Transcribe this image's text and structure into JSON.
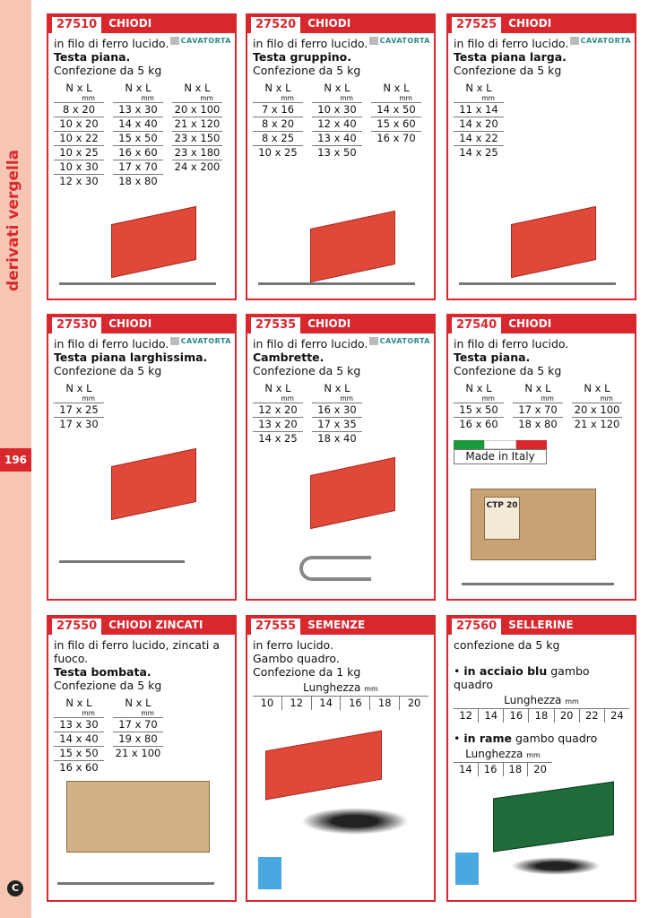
{
  "sidebar": {
    "title": "derivati vergella",
    "page": "196",
    "logo": "C"
  },
  "brand": "CAVATORTA",
  "cards": [
    {
      "code": "27510",
      "name": "CHIODI",
      "lines": [
        "in filo di ferro lucido."
      ],
      "bold": "Testa piana.",
      "pack": "Confezione da 5 kg",
      "header": "N x L",
      "unit": "mm",
      "cols": [
        [
          "8 x 20",
          "10 x 20",
          "10 x 22",
          "10 x 25",
          "10 x 30",
          "12 x 30"
        ],
        [
          "13 x 30",
          "14 x 40",
          "15 x 50",
          "16 x 60",
          "17 x 70",
          "18 x 80"
        ],
        [
          "20 x 100",
          "21 x 120",
          "23 x 150",
          "23 x 180",
          "24 x 200"
        ]
      ]
    },
    {
      "code": "27520",
      "name": "CHIODI",
      "lines": [
        "in filo di ferro lucido."
      ],
      "bold": "Testa gruppino.",
      "pack": "Confezione da 5 kg",
      "header": "N x L",
      "unit": "mm",
      "cols": [
        [
          "7 x 16",
          "8 x 20",
          "8 x 25",
          "10 x 25"
        ],
        [
          "10 x 30",
          "12 x 40",
          "13 x 40",
          "13 x 50"
        ],
        [
          "14 x 50",
          "15 x 60",
          "16 x 70"
        ]
      ]
    },
    {
      "code": "27525",
      "name": "CHIODI",
      "lines": [
        "in filo di ferro lucido."
      ],
      "bold": "Testa piana larga.",
      "pack": "Confezione da 5 kg",
      "header": "N x L",
      "unit": "mm",
      "cols": [
        [
          "11 x 14",
          "14 x 20",
          "14 x 22",
          "14 x 25"
        ]
      ]
    },
    {
      "code": "27530",
      "name": "CHIODI",
      "lines": [
        "in filo di ferro lucido."
      ],
      "bold": "Testa piana larghissima.",
      "pack": "Confezione da 5 kg",
      "header": "N x L",
      "unit": "mm",
      "cols": [
        [
          "17 x 25",
          "17 x 30"
        ]
      ]
    },
    {
      "code": "27535",
      "name": "CHIODI",
      "lines": [
        "in filo di ferro lucido."
      ],
      "bold": "Cambrette.",
      "pack": "Confezione da 5 kg",
      "header": "N x L",
      "unit": "mm",
      "cols": [
        [
          "12 x 20",
          "13 x 20",
          "14 x 25"
        ],
        [
          "16 x 30",
          "17 x 35",
          "18 x 40"
        ]
      ]
    },
    {
      "code": "27540",
      "name": "CHIODI",
      "lines": [
        "in filo di ferro lucido."
      ],
      "bold": "Testa piana.",
      "pack": "Confezione da 5 kg",
      "header": "N x L",
      "unit": "mm",
      "cols": [
        [
          "15 x 50",
          "16 x 60"
        ],
        [
          "17 x 70",
          "18 x 80"
        ],
        [
          "20 x 100",
          "21 x 120"
        ]
      ],
      "made_in": "Made in Italy",
      "box_label": "CTP 20"
    },
    {
      "code": "27550",
      "name": "CHIODI ZINCATI",
      "lines": [
        "in filo di ferro lucido, zincati a fuoco."
      ],
      "bold": "Testa bombata.",
      "pack": "Confezione da 5 kg",
      "header": "N x L",
      "unit": "mm",
      "cols": [
        [
          "13 x 30",
          "14 x 40",
          "15 x 50",
          "16 x 60"
        ],
        [
          "17 x 70",
          "19 x 80",
          "21 x 100"
        ]
      ]
    },
    {
      "code": "27555",
      "name": "SEMENZE",
      "lines": [
        "in ferro lucido.",
        "Gambo quadro.",
        "Confezione da 1 kg"
      ],
      "length_label": "Lunghezza",
      "unit": "mm",
      "lengths": [
        "10",
        "12",
        "14",
        "16",
        "18",
        "20"
      ]
    },
    {
      "code": "27560",
      "name": "SELLERINE",
      "lines": [
        "confezione da 5 kg"
      ],
      "groups": [
        {
          "bold": "in acciaio blu",
          "rest": "gambo quadro",
          "lengths": [
            "12",
            "14",
            "16",
            "18",
            "20",
            "22",
            "24"
          ]
        },
        {
          "bold": "in rame",
          "rest": "gambo quadro",
          "lengths": [
            "14",
            "16",
            "18",
            "20"
          ]
        }
      ],
      "length_label": "Lunghezza",
      "unit": "mm"
    }
  ],
  "colors": {
    "accent": "#d9272e",
    "sidebar": "#f7c6b3"
  }
}
